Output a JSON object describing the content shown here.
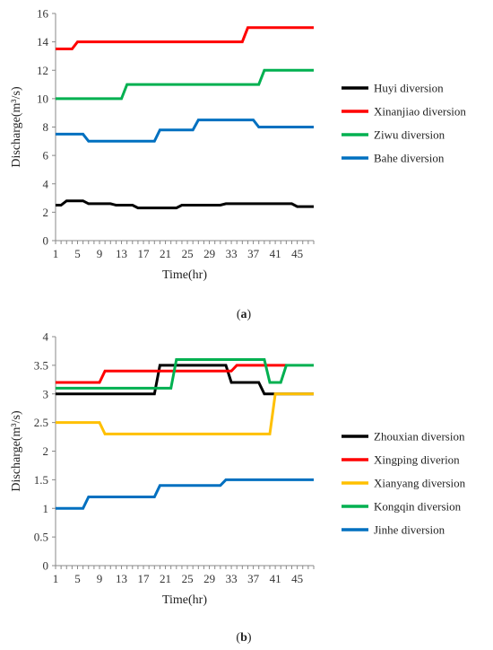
{
  "chart_data": [
    {
      "type": "line",
      "caption": "(a)",
      "xlabel": "Time(hr)",
      "ylabel": "Discharge(m³/s)",
      "xlim": [
        1,
        48
      ],
      "ylim": [
        0,
        16
      ],
      "xticks": [
        "1",
        "5",
        "9",
        "13",
        "17",
        "21",
        "25",
        "29",
        "33",
        "37",
        "41",
        "45"
      ],
      "yticks": [
        "0",
        "2",
        "4",
        "6",
        "8",
        "10",
        "12",
        "14",
        "16"
      ],
      "grid": false,
      "legend": "right",
      "series": [
        {
          "name": "Huyi diversion",
          "color": "#000000",
          "points": [
            [
              1,
              2.5
            ],
            [
              2,
              2.5
            ],
            [
              3,
              2.8
            ],
            [
              6,
              2.8
            ],
            [
              7,
              2.6
            ],
            [
              11,
              2.6
            ],
            [
              12,
              2.5
            ],
            [
              15,
              2.5
            ],
            [
              16,
              2.3
            ],
            [
              23,
              2.3
            ],
            [
              24,
              2.5
            ],
            [
              31,
              2.5
            ],
            [
              32,
              2.6
            ],
            [
              44,
              2.6
            ],
            [
              45,
              2.4
            ],
            [
              48,
              2.4
            ]
          ]
        },
        {
          "name": "Xinanjiao diversion",
          "color": "#ff0000",
          "points": [
            [
              1,
              13.5
            ],
            [
              4,
              13.5
            ],
            [
              5,
              14
            ],
            [
              35,
              14
            ],
            [
              36,
              15
            ],
            [
              48,
              15
            ]
          ]
        },
        {
          "name": "Ziwu diversion",
          "color": "#00b050",
          "points": [
            [
              1,
              10
            ],
            [
              13,
              10
            ],
            [
              14,
              11
            ],
            [
              38,
              11
            ],
            [
              39,
              12
            ],
            [
              48,
              12
            ]
          ]
        },
        {
          "name": "Bahe diversion",
          "color": "#0070c0",
          "points": [
            [
              1,
              7.5
            ],
            [
              6,
              7.5
            ],
            [
              7,
              7
            ],
            [
              19,
              7
            ],
            [
              20,
              7.8
            ],
            [
              26,
              7.8
            ],
            [
              27,
              8.5
            ],
            [
              37,
              8.5
            ],
            [
              38,
              8
            ],
            [
              48,
              8
            ]
          ]
        }
      ]
    },
    {
      "type": "line",
      "caption": "(b)",
      "xlabel": "Time(hr)",
      "ylabel": "Discharge(m³/s)",
      "xlim": [
        1,
        48
      ],
      "ylim": [
        0,
        4
      ],
      "xticks": [
        "1",
        "5",
        "9",
        "13",
        "17",
        "21",
        "25",
        "29",
        "33",
        "37",
        "41",
        "45"
      ],
      "yticks": [
        "0",
        "0.5",
        "1",
        "1.5",
        "2",
        "2.5",
        "3",
        "3.5",
        "4"
      ],
      "grid": false,
      "legend": "right",
      "series": [
        {
          "name": "Zhouxian diversion",
          "color": "#000000",
          "points": [
            [
              1,
              3
            ],
            [
              19,
              3
            ],
            [
              20,
              3.5
            ],
            [
              32,
              3.5
            ],
            [
              33,
              3.2
            ],
            [
              38,
              3.2
            ],
            [
              39,
              3
            ],
            [
              48,
              3
            ]
          ]
        },
        {
          "name": "Xingping diverion",
          "color": "#ff0000",
          "points": [
            [
              1,
              3.2
            ],
            [
              9,
              3.2
            ],
            [
              10,
              3.4
            ],
            [
              33,
              3.4
            ],
            [
              34,
              3.5
            ],
            [
              43,
              3.5
            ]
          ]
        },
        {
          "name": "Xianyang diversion",
          "color": "#ffc000",
          "points": [
            [
              1,
              2.5
            ],
            [
              9,
              2.5
            ],
            [
              10,
              2.3
            ],
            [
              40,
              2.3
            ],
            [
              41,
              3
            ],
            [
              48,
              3
            ]
          ]
        },
        {
          "name": "Kongqin diversion",
          "color": "#00b050",
          "points": [
            [
              1,
              3.1
            ],
            [
              22,
              3.1
            ],
            [
              23,
              3.6
            ],
            [
              39,
              3.6
            ],
            [
              40,
              3.2
            ],
            [
              42,
              3.2
            ],
            [
              43,
              3.5
            ],
            [
              48,
              3.5
            ]
          ]
        },
        {
          "name": "Jinhe diversion",
          "color": "#0070c0",
          "points": [
            [
              1,
              1
            ],
            [
              6,
              1
            ],
            [
              7,
              1.2
            ],
            [
              19,
              1.2
            ],
            [
              20,
              1.4
            ],
            [
              31,
              1.4
            ],
            [
              32,
              1.5
            ],
            [
              48,
              1.5
            ]
          ]
        }
      ]
    }
  ]
}
